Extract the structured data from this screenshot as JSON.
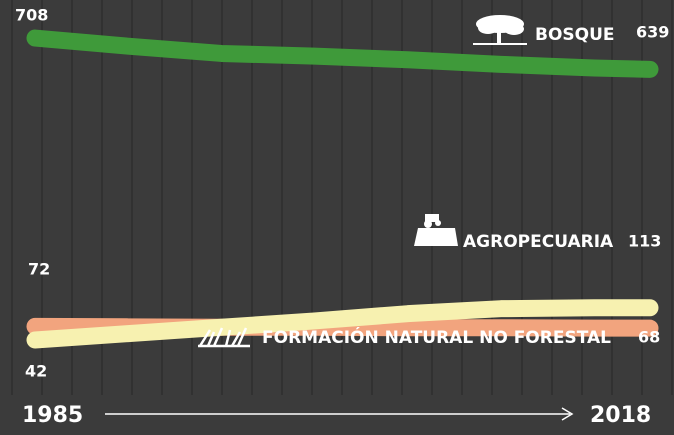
{
  "chart_data": {
    "type": "line",
    "x": [
      1985,
      1990,
      1995,
      2000,
      2005,
      2010,
      2015,
      2018
    ],
    "xlim": [
      1985,
      2018
    ],
    "xticks": [
      1985,
      2018
    ],
    "ylim": [
      0,
      750
    ],
    "series": [
      {
        "name": "BOSQUE",
        "color": "#3f9a3a",
        "values": [
          708,
          690,
          674,
          668,
          660,
          650,
          642,
          639
        ]
      },
      {
        "name": "AGROPECUARIA",
        "color": "#f7f1b0",
        "values": [
          42,
          56,
          70,
          84,
          100,
          111,
          113,
          113
        ]
      },
      {
        "name": "FORMACIÓN NATURAL NO FORESTAL",
        "color": "#f2a47e",
        "values": [
          72,
          71,
          70,
          70,
          69,
          69,
          68,
          68
        ]
      }
    ]
  }
}
